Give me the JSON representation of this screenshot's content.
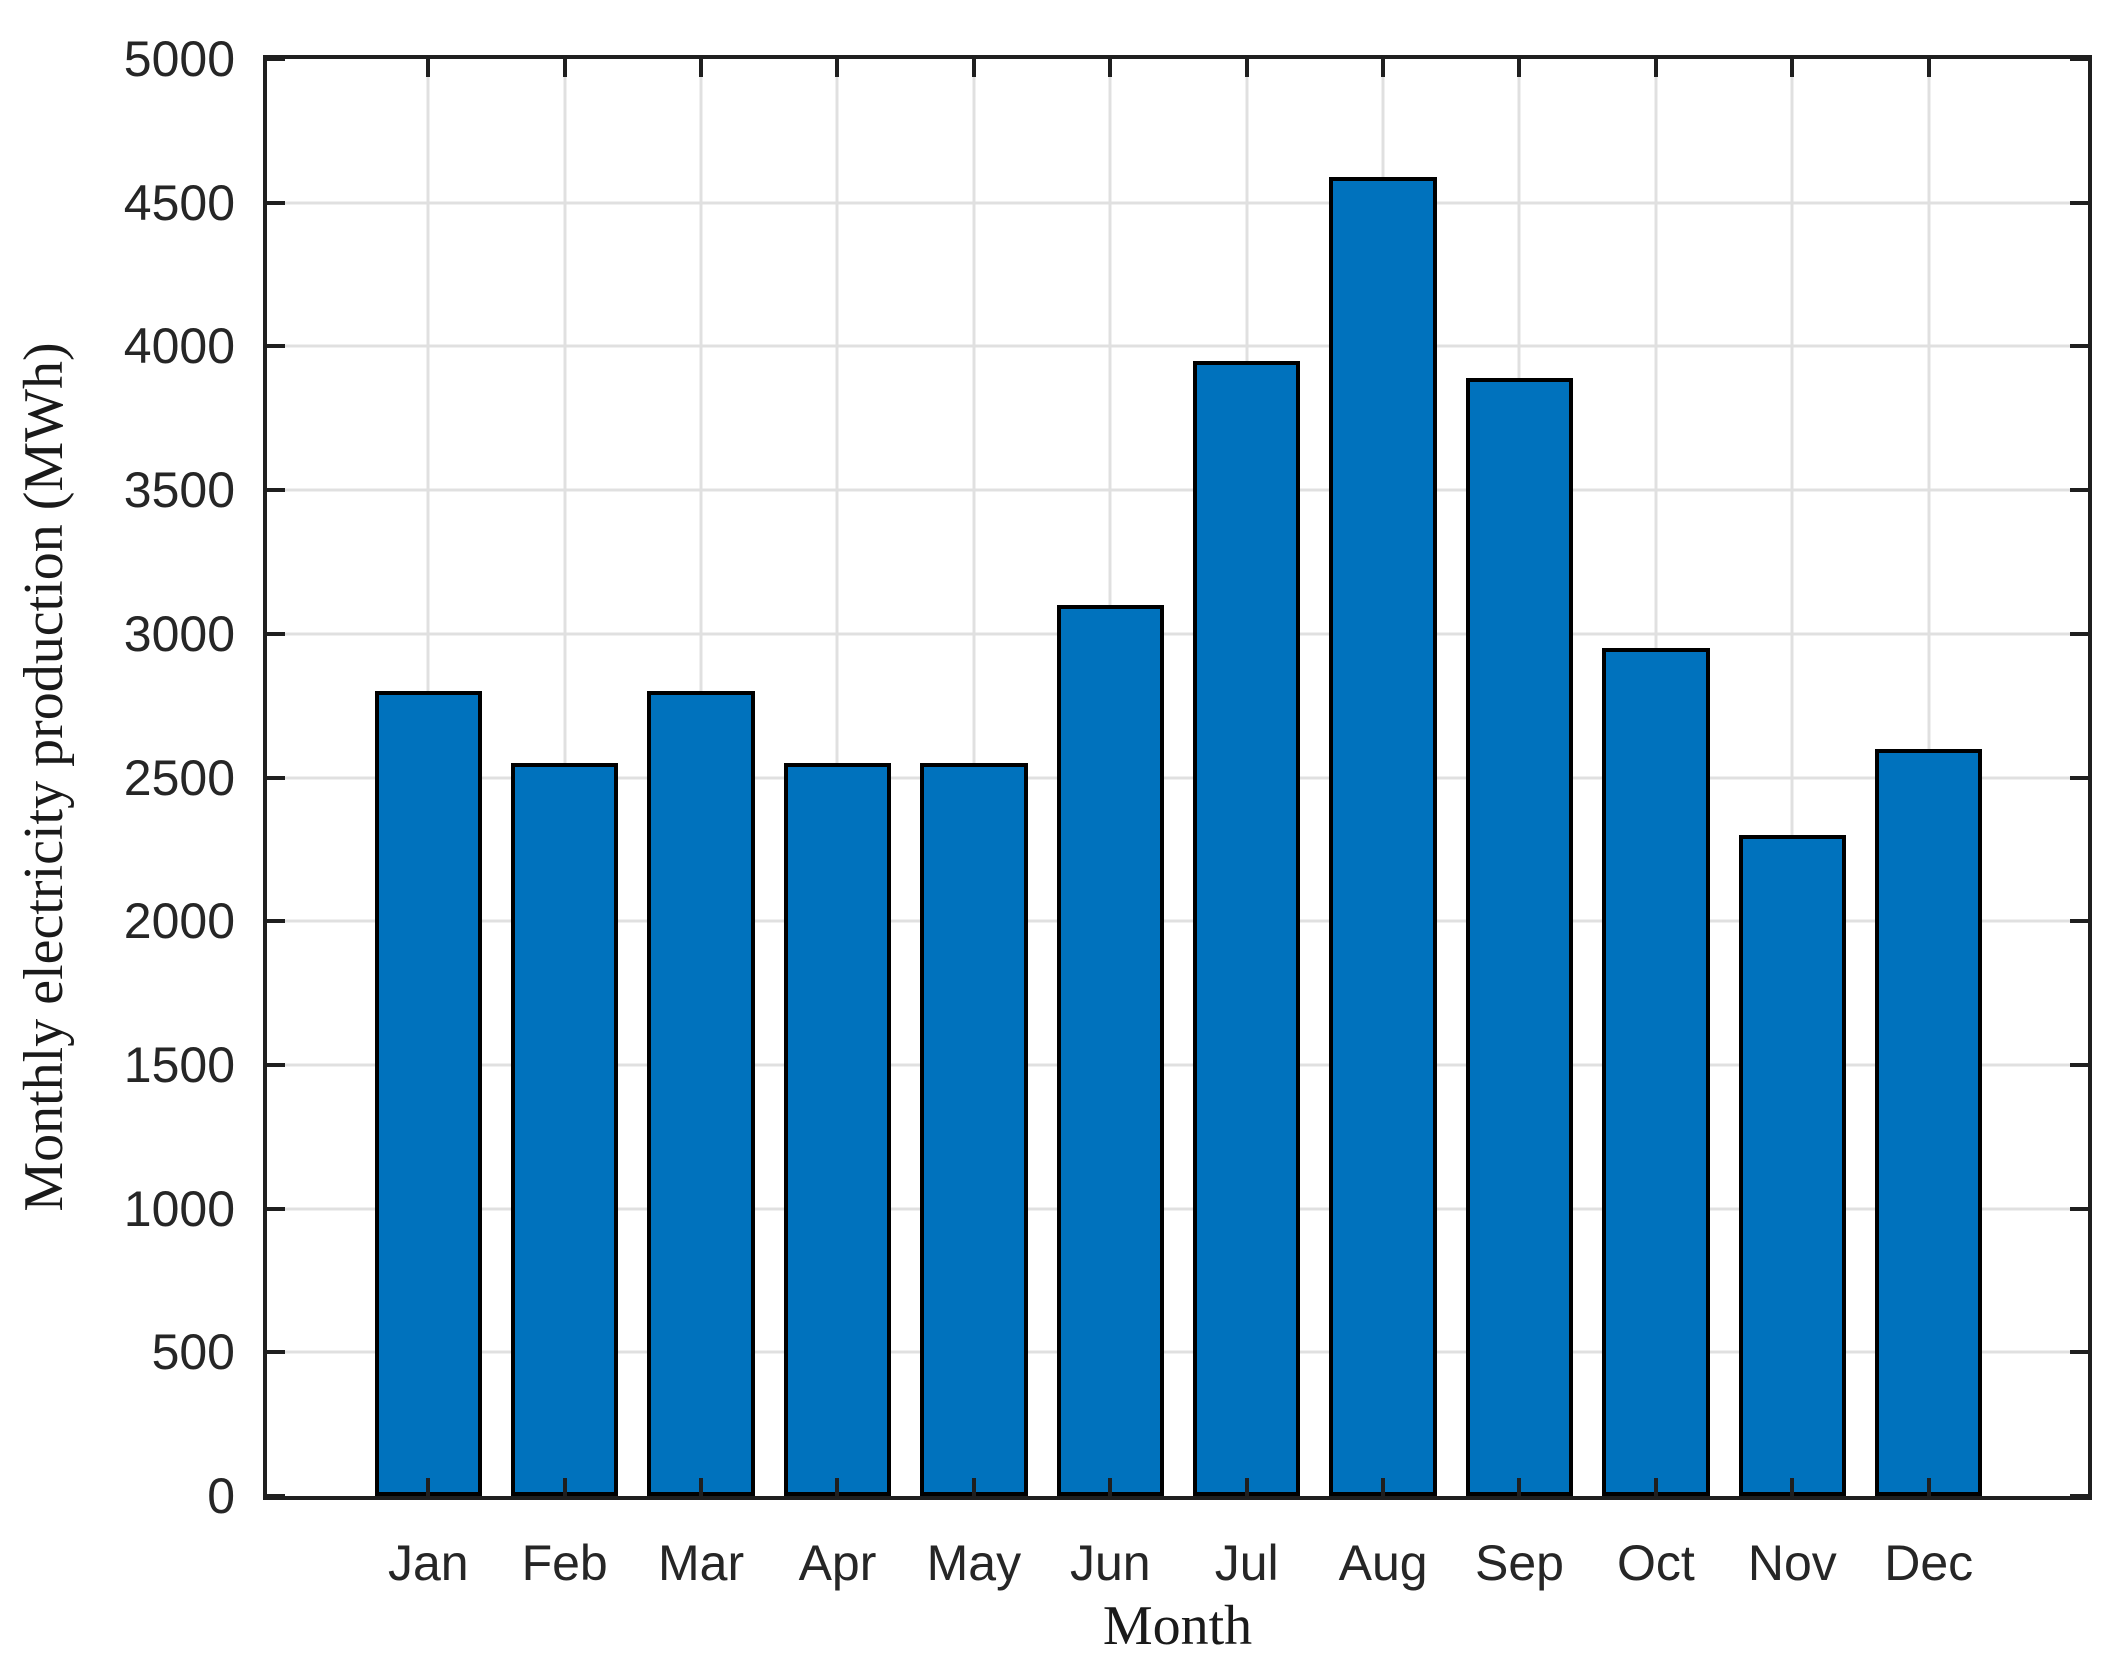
{
  "figure": {
    "xlabel": "Month",
    "ylabel": "Monthly electricity production (MWh)"
  },
  "chart_data": {
    "type": "bar",
    "title": "",
    "xlabel": "Month",
    "ylabel": "Monthly electricity production (MWh)",
    "categories": [
      "Jan",
      "Feb",
      "Mar",
      "Apr",
      "May",
      "Jun",
      "Jul",
      "Aug",
      "Sep",
      "Oct",
      "Nov",
      "Dec"
    ],
    "values": [
      2800,
      2550,
      2800,
      2550,
      2550,
      3100,
      3950,
      4590,
      3890,
      2950,
      2300,
      2600
    ],
    "ylim": [
      0,
      5000
    ],
    "ytick_step": 500,
    "ytick_labels": [
      "0",
      "500",
      "1000",
      "1500",
      "2000",
      "2500",
      "3000",
      "3500",
      "4000",
      "4500",
      "5000"
    ],
    "grid": "on",
    "legend": "none",
    "colors": {
      "bar_fill": "#0072BD",
      "bar_edge": "#000000",
      "grid": "#E0E0E0",
      "axis": "#1F1F1F",
      "tick_label": "#262626",
      "axis_label": "#1A1A1A",
      "background": "#FFFFFF"
    }
  }
}
